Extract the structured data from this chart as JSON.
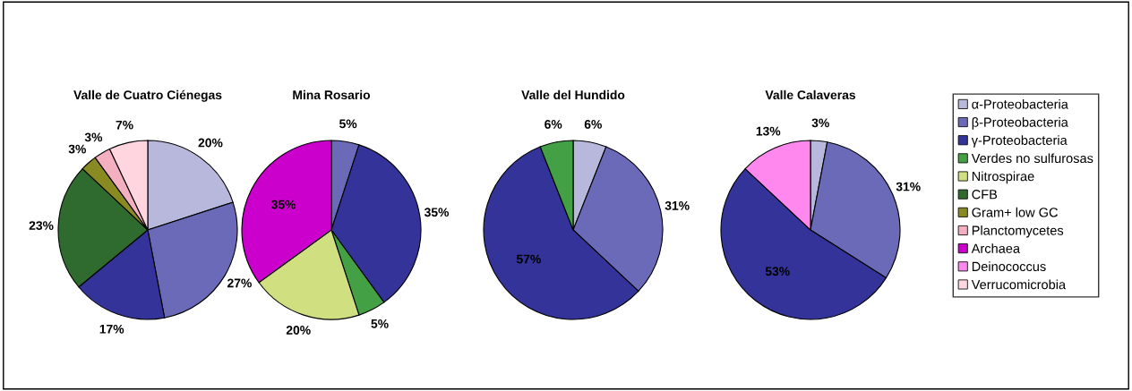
{
  "chart_data": [
    {
      "type": "pie",
      "title": "Valle de Cuatro Ciénegas",
      "categories": [
        "α-Proteobacteria",
        "β-Proteobacteria",
        "γ-Proteobacteria",
        "Verdes no sulfurosas",
        "Nitrospirae",
        "CFB",
        "Gram+ low GC",
        "Planctomycetes",
        "Archaea",
        "Deinococcus",
        "Verrucomicrobia"
      ],
      "values": [
        20,
        27,
        17,
        null,
        null,
        23,
        3,
        3,
        null,
        null,
        7
      ],
      "value_labels": [
        "20%",
        "27%",
        "17%",
        null,
        null,
        "23%",
        "3%",
        "3%",
        null,
        null,
        "7%"
      ],
      "colors": [
        "#b8b8dc",
        "#6a6ab8",
        "#33339a",
        "#44a044",
        "#d0e080",
        "#2f6a2f",
        "#8a8a22",
        "#f4b0c0",
        "#cc00cc",
        "#ff88ee",
        "#ffd6e0"
      ],
      "legend": "right"
    },
    {
      "type": "pie",
      "title": "Mina Rosario",
      "categories": [
        null,
        null,
        null,
        null,
        null
      ],
      "values": [
        5,
        35,
        5,
        20,
        35
      ],
      "value_labels": [
        "5%",
        "35%",
        "5%",
        "20%",
        "35%"
      ],
      "colors": [
        "#6a6ab8",
        "#33339a",
        "#44a044",
        "#d0e080",
        "#cc00cc"
      ]
    },
    {
      "type": "pie",
      "title": "Valle del Hundido",
      "categories": [
        null,
        null,
        null,
        null
      ],
      "values": [
        6,
        31,
        57,
        6
      ],
      "value_labels": [
        "6%",
        "31%",
        "57%",
        "6%"
      ],
      "colors": [
        "#b8b8dc",
        "#6a6ab8",
        "#33339a",
        "#44a044"
      ]
    },
    {
      "type": "pie",
      "title": "Valle Calaveras",
      "categories": [
        null,
        null,
        null,
        null
      ],
      "values": [
        3,
        31,
        53,
        13
      ],
      "value_labels": [
        "3%",
        "31%",
        "53%",
        "13%"
      ],
      "colors": [
        "#b8b8dc",
        "#6a6ab8",
        "#33339a",
        "#ff88ee"
      ]
    }
  ]
}
